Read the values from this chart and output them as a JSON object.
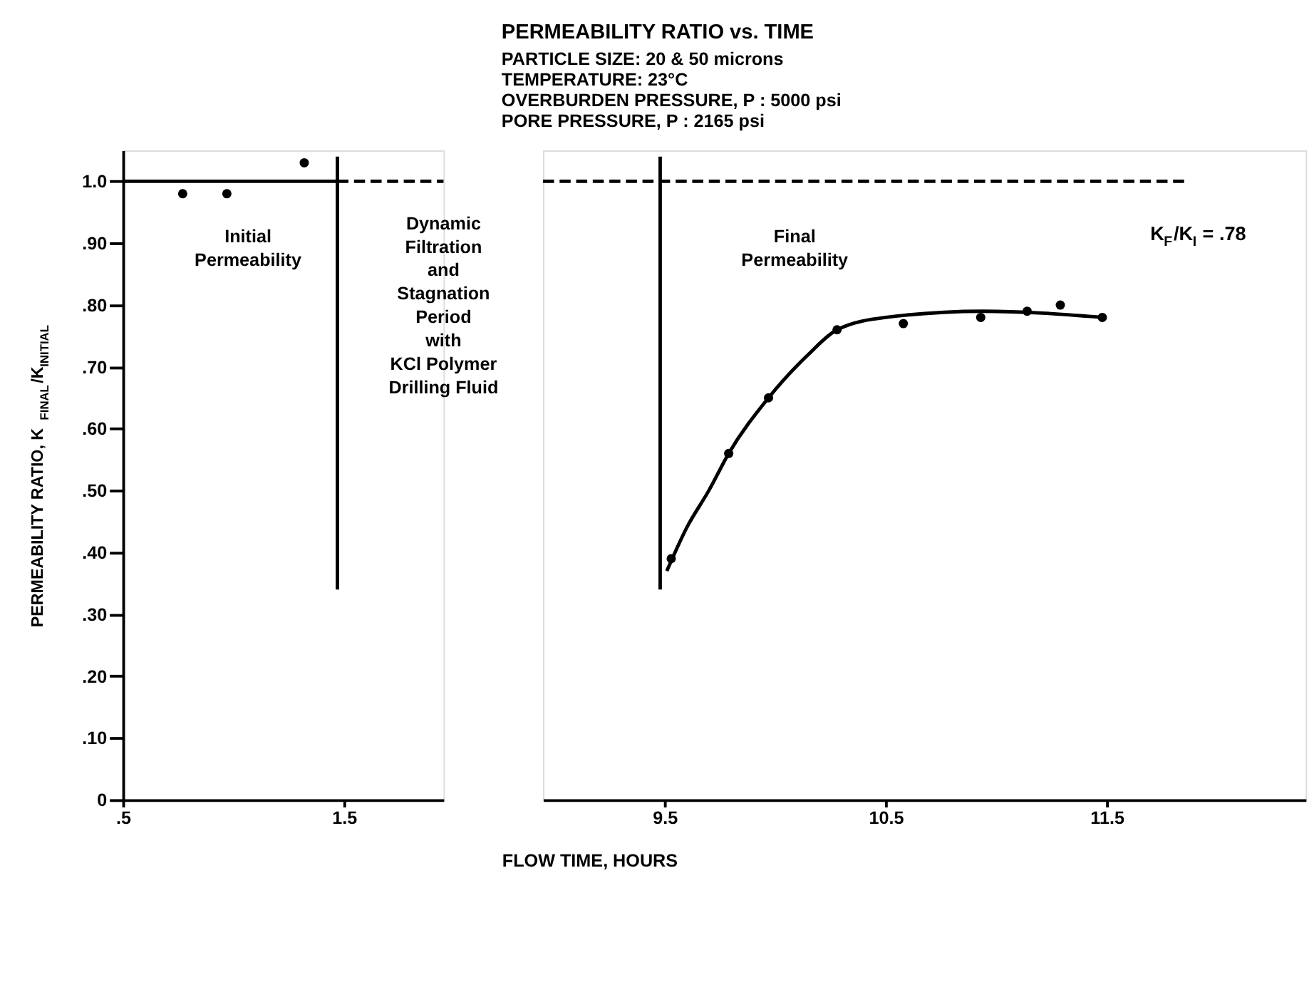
{
  "chart_data": [
    {
      "type": "scatter",
      "ylabel": "PERMEABILITY RATIO, K$_{FINAL}$/K$_{INITIAL}$",
      "xlim": [
        0.5,
        1.95
      ],
      "xticks": [
        {
          "value": 0.5,
          "label": ".5"
        },
        1.5
      ],
      "ylim": [
        0,
        1.05
      ],
      "yticks": [
        0,
        {
          "value": 0.1,
          "label": ".10"
        },
        {
          "value": 0.2,
          "label": ".20"
        },
        {
          "value": 0.3,
          "label": ".30"
        },
        {
          "value": 0.4,
          "label": ".40"
        },
        {
          "value": 0.5,
          "label": ".50"
        },
        {
          "value": 0.6,
          "label": ".60"
        },
        {
          "value": 0.7,
          "label": ".70"
        },
        {
          "value": 0.8,
          "label": ".80"
        },
        {
          "value": 0.9,
          "label": ".90"
        },
        {
          "value": 1.0,
          "label": "1.0"
        }
      ],
      "grid": false,
      "annotations": [
        "Initial\n\nPermeability",
        "Dynamic\nFiltration\nand\nStagnation\nPeriod\nwith\nKCl Polymer\nDrilling Fluid"
      ],
      "series": [
        {
          "marker": "circle",
          "color": "#000000",
          "x": [
            0.77,
            0.97,
            1.32
          ],
          "values": [
            0.98,
            0.98,
            1.03
          ]
        },
        {
          "type": "line",
          "line_style": "solid",
          "color": "#000000",
          "x": [
            0.5,
            1.47
          ],
          "values": [
            1.0,
            1.0
          ]
        },
        {
          "type": "line",
          "line_style": "dashed",
          "color": "#000000",
          "x": [
            1.47,
            1.95
          ],
          "values": [
            1.0,
            1.0
          ]
        },
        {
          "type": "line",
          "line_style": "solid",
          "color": "#000000",
          "x": [
            1.47,
            1.47
          ],
          "values": [
            1.04,
            0.34
          ]
        }
      ]
    },
    {
      "type": "scatter",
      "title": "PERMEABILITY RATIO vs. TIME",
      "subtitle": "PARTICLE SIZE: 20 & 50 microns\nTEMPERATURE: 23°C\nOVERBURDEN PRESSURE, P : 5000 psi\nPORE PRESSURE, P : 2165 psi",
      "xlabel": "FLOW TIME, HOURS",
      "tick_labels": "x",
      "xlim": [
        8.95,
        12.4
      ],
      "xticks": [
        9.5,
        10.5,
        11.5
      ],
      "ylim": [
        0,
        1.05
      ],
      "grid": false,
      "annotations": [
        "Final\n\nPermeability",
        "K$_{F}$/K$_{I}$ = .78"
      ],
      "series": [
        {
          "type": "line",
          "line_style": "dashed",
          "color": "#000000",
          "x": [
            8.95,
            11.87
          ],
          "values": [
            1.0,
            1.0
          ]
        },
        {
          "type": "line",
          "line_style": "solid",
          "color": "#000000",
          "x": [
            9.48,
            9.48
          ],
          "values": [
            1.04,
            0.34
          ]
        },
        {
          "type": "line",
          "line_style": "solid",
          "color": "#000000",
          "x": [
            9.51,
            9.6,
            9.7,
            9.79,
            9.97,
            10.15,
            10.28,
            10.5,
            10.94,
            11.48
          ],
          "values": [
            0.37,
            0.44,
            0.5,
            0.56,
            0.65,
            0.72,
            0.76,
            0.78,
            0.79,
            0.78
          ]
        },
        {
          "marker": "circle",
          "color": "#000000",
          "x": [
            9.53,
            9.79,
            9.97,
            10.28,
            10.58,
            10.93,
            11.14,
            11.29,
            11.48
          ],
          "values": [
            0.39,
            0.56,
            0.65,
            0.76,
            0.77,
            0.78,
            0.79,
            0.8,
            0.78
          ]
        }
      ]
    }
  ]
}
